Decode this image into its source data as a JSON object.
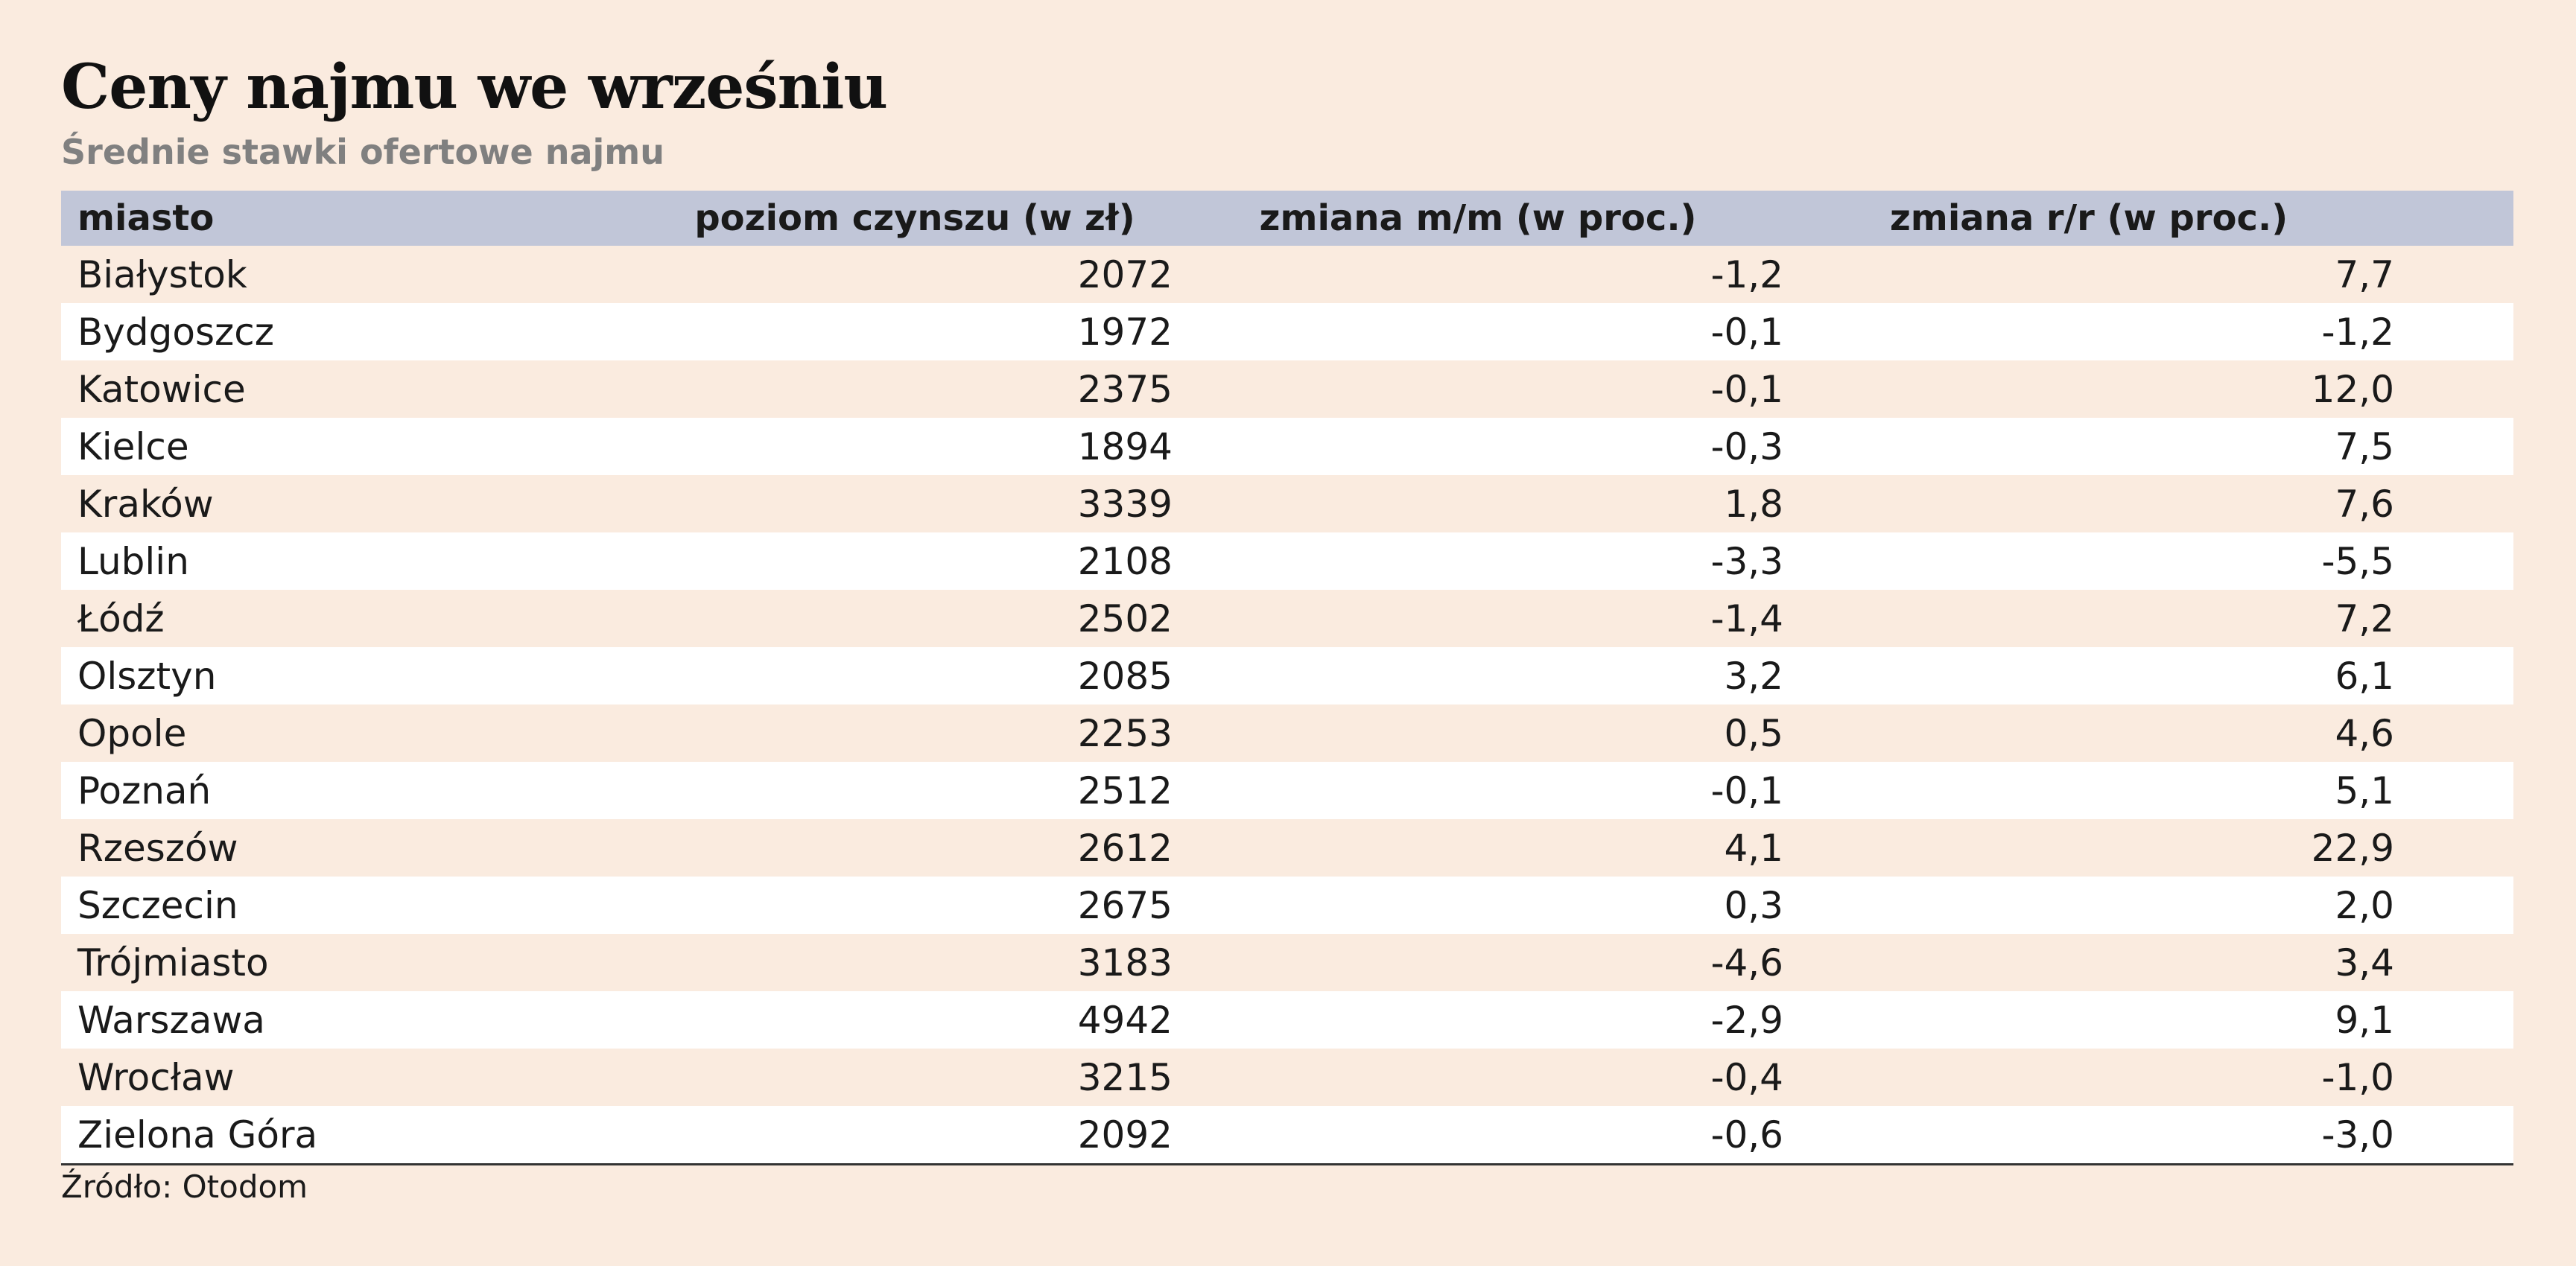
{
  "chart_data": {
    "type": "table",
    "title": "Ceny najmu we wrześniu",
    "subtitle": "Średnie stawki ofertowe najmu",
    "columns": [
      "miasto",
      "poziom czynszu (w zł)",
      "zmiana m/m (w proc.)",
      "zmiana r/r (w proc.)"
    ],
    "rows": [
      [
        "Białystok",
        "2072",
        "-1,2",
        "7,7"
      ],
      [
        "Bydgoszcz",
        "1972",
        "-0,1",
        "-1,2"
      ],
      [
        "Katowice",
        "2375",
        "-0,1",
        "12,0"
      ],
      [
        "Kielce",
        "1894",
        "-0,3",
        "7,5"
      ],
      [
        "Kraków",
        "3339",
        "1,8",
        "7,6"
      ],
      [
        "Lublin",
        "2108",
        "-3,3",
        "-5,5"
      ],
      [
        "Łódź",
        "2502",
        "-1,4",
        "7,2"
      ],
      [
        "Olsztyn",
        "2085",
        "3,2",
        "6,1"
      ],
      [
        "Opole",
        "2253",
        "0,5",
        "4,6"
      ],
      [
        "Poznań",
        "2512",
        "-0,1",
        "5,1"
      ],
      [
        "Rzeszów",
        "2612",
        "4,1",
        "22,9"
      ],
      [
        "Szczecin",
        "2675",
        "0,3",
        "2,0"
      ],
      [
        "Trójmiasto",
        "3183",
        "-4,6",
        "3,4"
      ],
      [
        "Warszawa",
        "4942",
        "-2,9",
        "9,1"
      ],
      [
        "Wrocław",
        "3215",
        "-0,4",
        "-1,0"
      ],
      [
        "Zielona Góra",
        "2092",
        "-0,6",
        "-3,0"
      ]
    ],
    "source": "Źródło: Otodom"
  },
  "colors": {
    "background": "#faebdf",
    "header_row": "#c1c6d8",
    "alt_row": "#ffffff",
    "subtitle_text": "#808080"
  }
}
